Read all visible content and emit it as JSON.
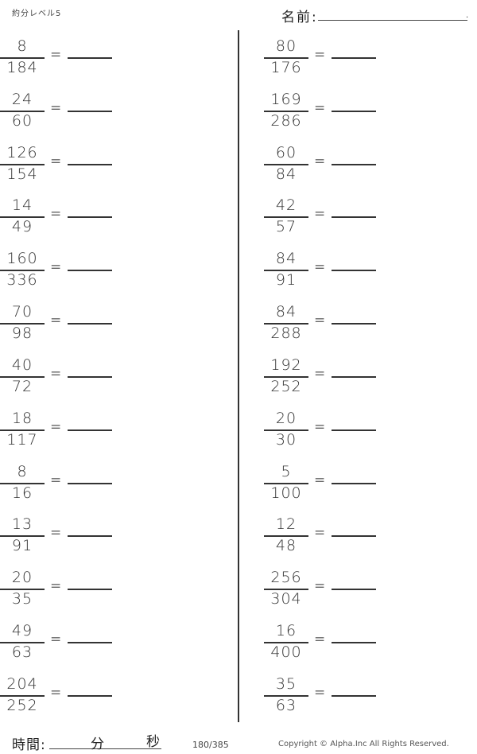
{
  "header": {
    "level": "約分レベル5",
    "name_label": "名前:",
    "name_end": "."
  },
  "problems_left": [
    {
      "numerator": "8",
      "denominator": "184"
    },
    {
      "numerator": "24",
      "denominator": "60"
    },
    {
      "numerator": "126",
      "denominator": "154"
    },
    {
      "numerator": "14",
      "denominator": "49"
    },
    {
      "numerator": "160",
      "denominator": "336"
    },
    {
      "numerator": "70",
      "denominator": "98"
    },
    {
      "numerator": "40",
      "denominator": "72"
    },
    {
      "numerator": "18",
      "denominator": "117"
    },
    {
      "numerator": "8",
      "denominator": "16"
    },
    {
      "numerator": "13",
      "denominator": "91"
    },
    {
      "numerator": "20",
      "denominator": "35"
    },
    {
      "numerator": "49",
      "denominator": "63"
    },
    {
      "numerator": "204",
      "denominator": "252"
    }
  ],
  "problems_right": [
    {
      "numerator": "80",
      "denominator": "176"
    },
    {
      "numerator": "169",
      "denominator": "286"
    },
    {
      "numerator": "60",
      "denominator": "84"
    },
    {
      "numerator": "42",
      "denominator": "57"
    },
    {
      "numerator": "84",
      "denominator": "91"
    },
    {
      "numerator": "84",
      "denominator": "288"
    },
    {
      "numerator": "192",
      "denominator": "252"
    },
    {
      "numerator": "20",
      "denominator": "30"
    },
    {
      "numerator": "5",
      "denominator": "100"
    },
    {
      "numerator": "12",
      "denominator": "48"
    },
    {
      "numerator": "256",
      "denominator": "304"
    },
    {
      "numerator": "16",
      "denominator": "400"
    },
    {
      "numerator": "35",
      "denominator": "63"
    }
  ],
  "equals": "=",
  "footer": {
    "time_label": "時間:",
    "minutes_label": "分",
    "seconds_label": "秒",
    "page": "180/385",
    "copyright": "Copyright ©  Alpha.Inc All Rights Reserved."
  }
}
